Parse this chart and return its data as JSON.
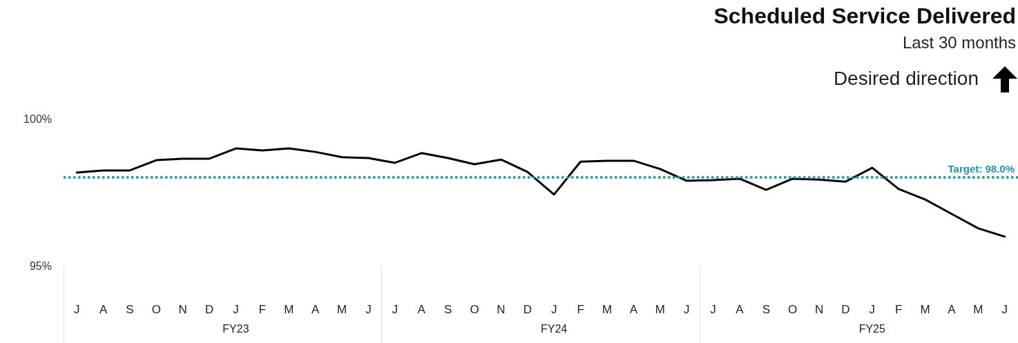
{
  "chart_data": {
    "type": "line",
    "title": "Scheduled Service Delivered",
    "subtitle": "Last 30 months",
    "categories": [
      "J",
      "A",
      "S",
      "O",
      "N",
      "D",
      "J",
      "F",
      "M",
      "A",
      "M",
      "J",
      "J",
      "A",
      "S",
      "O",
      "N",
      "D",
      "J",
      "F",
      "M",
      "A",
      "M",
      "J",
      "J",
      "A",
      "S",
      "O",
      "N",
      "D",
      "J",
      "F",
      "M",
      "A",
      "M",
      "J"
    ],
    "series": [
      {
        "color": "#000000",
        "values": [
          98.17,
          98.24,
          98.24,
          98.59,
          98.64,
          98.64,
          98.99,
          98.92,
          98.99,
          98.87,
          98.69,
          98.66,
          98.5,
          98.83,
          98.66,
          98.45,
          98.61,
          98.19,
          97.42,
          98.54,
          98.57,
          98.57,
          98.29,
          97.89,
          97.91,
          97.96,
          97.58,
          97.96,
          97.93,
          97.86,
          98.33,
          97.61,
          97.25,
          96.76,
          96.27,
          95.99
        ]
      }
    ],
    "ylim": [
      95,
      100
    ],
    "yticks": [
      {
        "value": 95,
        "label": "95%"
      },
      {
        "value": 100,
        "label": "100%"
      }
    ],
    "ref_lines": [
      {
        "axis": "y",
        "value": 98,
        "label": "Target: 98.0%",
        "color": "#1a9aa8",
        "line_style": "dotted"
      }
    ],
    "annotations": [
      "Desired direction",
      "FY23",
      "FY24",
      "FY25"
    ],
    "grid": false,
    "line_style": "solid"
  }
}
